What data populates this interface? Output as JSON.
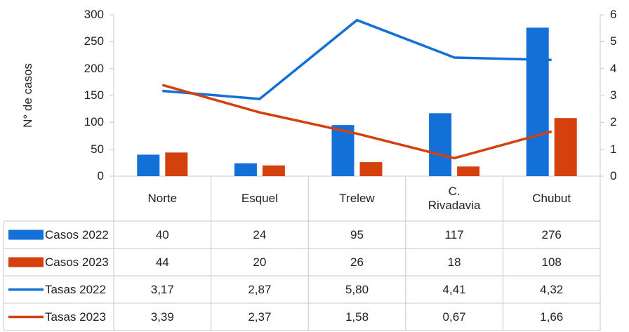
{
  "chart_data": {
    "type": "bar-line",
    "y_label": "N° de casos",
    "categories": [
      "Norte",
      "Esquel",
      "Trelew",
      "C. Rivadavia",
      "Chubut"
    ],
    "series": [
      {
        "name": "Casos 2022",
        "color": "#1270d6",
        "type": "bar",
        "values": [
          40,
          24,
          95,
          117,
          276
        ]
      },
      {
        "name": "Casos 2023",
        "color": "#d4400e",
        "type": "bar",
        "values": [
          44,
          20,
          26,
          18,
          108
        ]
      },
      {
        "name": "Tasas 2022",
        "color": "#1270d6",
        "type": "line",
        "axis": "y2",
        "values": [
          3.17,
          2.87,
          5.8,
          4.41,
          4.32
        ],
        "value_labels": [
          "3,17",
          "2,87",
          "5,80",
          "4,41",
          "4,32"
        ]
      },
      {
        "name": "Tasas 2023",
        "color": "#d4400e",
        "type": "line",
        "axis": "y2",
        "values": [
          3.39,
          2.37,
          1.58,
          0.67,
          1.66
        ],
        "value_labels": [
          "3,39",
          "2,37",
          "1,58",
          "0,67",
          "1,66"
        ]
      }
    ],
    "ylim": [
      0,
      300
    ],
    "yticks": [
      0,
      50,
      100,
      150,
      200,
      250,
      300
    ],
    "y2lim": [
      0,
      6
    ],
    "y2ticks": [
      0,
      1,
      2,
      3,
      4,
      5,
      6
    ],
    "grid": false,
    "data_table": true
  }
}
